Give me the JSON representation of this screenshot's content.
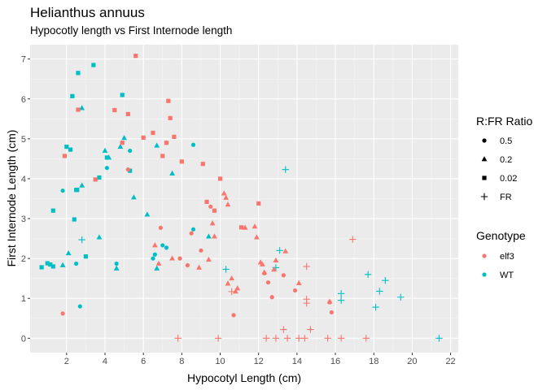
{
  "chart_data": {
    "type": "scatter",
    "title": "Helianthus annuus",
    "subtitle": "Hypocotly length vs First Internode length",
    "xlabel": "Hypocotyl Length (cm)",
    "ylabel": "First Internode Length (cm)",
    "xlim": [
      0.1,
      22.4
    ],
    "ylim": [
      -0.36,
      7.36
    ],
    "xticks": [
      2,
      4,
      6,
      8,
      10,
      12,
      14,
      16,
      18,
      20,
      22
    ],
    "yticks": [
      0,
      1,
      2,
      3,
      4,
      5,
      6,
      7
    ],
    "grid": true,
    "panel_background": "#EBEBEB",
    "colors": {
      "elf3": "#F8766D",
      "WT": "#00BFC4"
    },
    "legends": [
      {
        "title": "R:FR Ratio",
        "items": [
          {
            "label": "0.5",
            "shape": "circle"
          },
          {
            "label": "0.2",
            "shape": "triangle"
          },
          {
            "label": "0.02",
            "shape": "square"
          },
          {
            "label": "FR",
            "shape": "plus"
          }
        ]
      },
      {
        "title": "Genotype",
        "items": [
          {
            "label": "elf3",
            "color": "#F8766D"
          },
          {
            "label": "WT",
            "color": "#00BFC4"
          }
        ]
      }
    ],
    "series": [
      {
        "genotype": "WT",
        "ratio": "0.5",
        "shape": "circle",
        "points": [
          [
            1.8,
            3.7
          ],
          [
            2.5,
            1.87
          ],
          [
            2.7,
            0.8
          ],
          [
            4.1,
            4.27
          ],
          [
            4.6,
            1.87
          ],
          [
            5.3,
            4.7
          ],
          [
            6.5,
            2.0
          ],
          [
            6.6,
            2.1
          ],
          [
            7.0,
            2.33
          ],
          [
            7.2,
            2.27
          ],
          [
            8.6,
            2.73
          ],
          [
            8.6,
            4.85
          ]
        ]
      },
      {
        "genotype": "WT",
        "ratio": "0.2",
        "shape": "triangle",
        "points": [
          [
            1.8,
            1.83
          ],
          [
            2.1,
            2.13
          ],
          [
            2.8,
            5.77
          ],
          [
            2.8,
            3.83
          ],
          [
            3.7,
            2.53
          ],
          [
            4.0,
            4.7
          ],
          [
            4.2,
            4.53
          ],
          [
            4.6,
            1.75
          ],
          [
            4.8,
            4.8
          ],
          [
            5.0,
            5.02
          ],
          [
            5.5,
            3.53
          ],
          [
            6.2,
            3.1
          ],
          [
            6.7,
            4.83
          ],
          [
            6.7,
            1.75
          ],
          [
            7.5,
            4.13
          ],
          [
            9.4,
            2.55
          ]
        ]
      },
      {
        "genotype": "WT",
        "ratio": "0.02",
        "shape": "square",
        "points": [
          [
            0.7,
            1.78
          ],
          [
            1.0,
            1.88
          ],
          [
            1.15,
            1.85
          ],
          [
            1.3,
            1.8
          ],
          [
            1.3,
            3.2
          ],
          [
            2.0,
            4.8
          ],
          [
            2.2,
            4.73
          ],
          [
            2.3,
            6.07
          ],
          [
            2.4,
            2.98
          ],
          [
            2.5,
            3.72
          ],
          [
            2.55,
            3.72
          ],
          [
            2.6,
            6.65
          ],
          [
            3.0,
            2.05
          ],
          [
            3.4,
            6.85
          ],
          [
            3.7,
            4.03
          ],
          [
            4.1,
            4.53
          ],
          [
            4.9,
            6.1
          ],
          [
            5.3,
            4.2
          ]
        ]
      },
      {
        "genotype": "WT",
        "ratio": "FR",
        "shape": "plus",
        "points": [
          [
            2.8,
            2.47
          ],
          [
            10.3,
            1.73
          ],
          [
            12.9,
            1.77
          ],
          [
            13.1,
            2.2
          ],
          [
            13.4,
            4.23
          ],
          [
            16.3,
            1.12
          ],
          [
            16.3,
            0.95
          ],
          [
            17.7,
            1.6
          ],
          [
            18.1,
            0.78
          ],
          [
            18.3,
            1.18
          ],
          [
            18.6,
            1.45
          ],
          [
            19.4,
            1.03
          ],
          [
            21.4,
            0.0
          ]
        ]
      },
      {
        "genotype": "elf3",
        "ratio": "0.5",
        "shape": "circle",
        "points": [
          [
            1.8,
            0.62
          ],
          [
            5.2,
            4.23
          ],
          [
            6.9,
            2.77
          ],
          [
            7.9,
            2.0
          ],
          [
            8.3,
            1.83
          ],
          [
            8.5,
            2.63
          ],
          [
            9.0,
            2.2
          ],
          [
            9.5,
            3.3
          ],
          [
            10.7,
            0.58
          ],
          [
            12.3,
            1.63
          ],
          [
            12.5,
            1.4
          ],
          [
            12.7,
            1.03
          ],
          [
            13.3,
            1.58
          ],
          [
            13.9,
            1.2
          ],
          [
            15.7,
            0.9
          ],
          [
            15.8,
            0.65
          ]
        ]
      },
      {
        "genotype": "elf3",
        "ratio": "0.2",
        "shape": "triangle",
        "points": [
          [
            6.6,
            2.33
          ],
          [
            6.8,
            1.87
          ],
          [
            7.5,
            2.0
          ],
          [
            8.9,
            1.77
          ],
          [
            9.4,
            1.97
          ],
          [
            9.6,
            2.88
          ],
          [
            9.7,
            2.55
          ],
          [
            10.2,
            3.63
          ],
          [
            10.3,
            3.52
          ],
          [
            10.4,
            3.35
          ],
          [
            10.4,
            1.37
          ],
          [
            10.6,
            1.5
          ],
          [
            10.8,
            1.17
          ],
          [
            10.9,
            1.25
          ],
          [
            11.3,
            2.77
          ],
          [
            11.8,
            2.8
          ],
          [
            11.9,
            2.53
          ],
          [
            12.1,
            1.9
          ],
          [
            12.2,
            1.85
          ],
          [
            12.3,
            1.65
          ],
          [
            12.8,
            1.72
          ],
          [
            12.9,
            1.95
          ],
          [
            13.4,
            2.18
          ],
          [
            14.1,
            1.38
          ],
          [
            15.7,
            0.92
          ]
        ]
      },
      {
        "genotype": "elf3",
        "ratio": "0.02",
        "shape": "square",
        "points": [
          [
            1.9,
            4.57
          ],
          [
            3.5,
            3.98
          ],
          [
            4.5,
            5.72
          ],
          [
            4.9,
            4.9
          ],
          [
            5.2,
            5.62
          ],
          [
            5.6,
            7.08
          ],
          [
            6.0,
            5.03
          ],
          [
            6.5,
            5.15
          ],
          [
            7.0,
            4.57
          ],
          [
            7.2,
            4.9
          ],
          [
            7.3,
            5.95
          ],
          [
            7.4,
            5.52
          ],
          [
            7.6,
            5.05
          ],
          [
            8.0,
            4.43
          ],
          [
            9.1,
            4.37
          ],
          [
            9.3,
            3.42
          ],
          [
            9.7,
            3.2
          ],
          [
            10.0,
            4.0
          ],
          [
            11.1,
            2.78
          ],
          [
            12.0,
            3.38
          ],
          [
            2.6,
            5.73
          ]
        ]
      },
      {
        "genotype": "elf3",
        "ratio": "FR",
        "shape": "plus",
        "points": [
          [
            7.8,
            0.0
          ],
          [
            9.9,
            0.0
          ],
          [
            10.6,
            1.17
          ],
          [
            12.4,
            0.0
          ],
          [
            12.9,
            0.0
          ],
          [
            13.3,
            0.22
          ],
          [
            13.5,
            0.0
          ],
          [
            14.1,
            0.0
          ],
          [
            14.4,
            0.0
          ],
          [
            14.5,
            0.88
          ],
          [
            14.5,
            0.98
          ],
          [
            14.5,
            1.8
          ],
          [
            14.7,
            0.22
          ],
          [
            15.6,
            0.0
          ],
          [
            16.3,
            0.0
          ],
          [
            17.6,
            0.0
          ],
          [
            16.9,
            2.48
          ]
        ]
      }
    ]
  }
}
